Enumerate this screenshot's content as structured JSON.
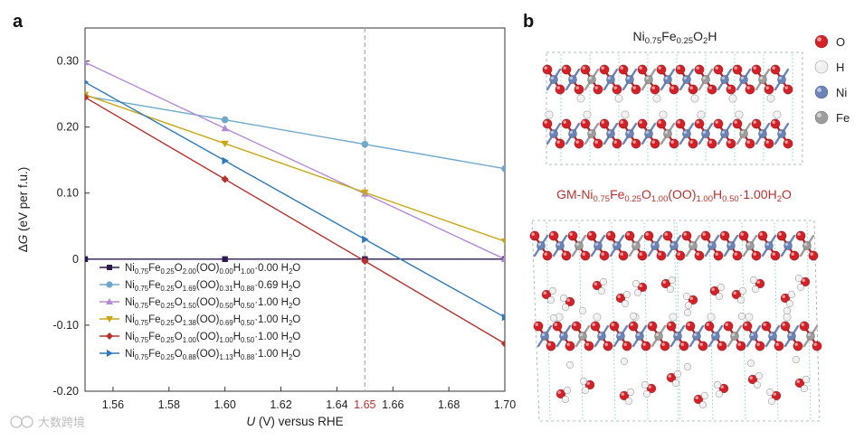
{
  "panel_a_label": "a",
  "panel_b_label": "b",
  "watermark": "大数跨境",
  "chart_data": {
    "type": "line",
    "title": "",
    "xlabel_prefix": "U",
    "xlabel_rest": " (V) versus RHE",
    "ylabel_prefix": "Δ",
    "ylabel_G": "G",
    "ylabel_rest": " (eV per f.u.)",
    "xlim": [
      1.55,
      1.7
    ],
    "ylim": [
      -0.2,
      0.35
    ],
    "xticks": [
      1.56,
      1.58,
      1.6,
      1.62,
      1.64,
      1.66,
      1.68,
      1.7
    ],
    "xtick_labels": [
      "1.56",
      "1.58",
      "1.60",
      "1.62",
      "1.64",
      "1.66",
      "1.68",
      "1.70"
    ],
    "yticks": [
      0.3,
      0.2,
      0.1,
      0,
      -0.1,
      -0.2
    ],
    "ytick_labels": [
      "0.30",
      "0.20",
      "0.10",
      "0",
      "-0.10",
      "-0.20"
    ],
    "vline": {
      "x": 1.65,
      "label": "1.65",
      "color": "#aaaaaa",
      "label_color": "#b5332e"
    },
    "grid": false,
    "legend_position": "bottom-left",
    "series": [
      {
        "color": "#2a1a4e",
        "marker": "square",
        "x": [
          1.55,
          1.6,
          1.65,
          1.7
        ],
        "y": [
          0.0,
          0.0,
          0.0,
          0.0
        ],
        "name_parts": [
          [
            "Ni",
            ""
          ],
          [
            "0.75",
            "sub"
          ],
          [
            "Fe",
            ""
          ],
          [
            "0.25",
            "sub"
          ],
          [
            "O",
            ""
          ],
          [
            "2.00",
            "sub"
          ],
          [
            "(OO)",
            ""
          ],
          [
            "0.00",
            "sub"
          ],
          [
            "H",
            ""
          ],
          [
            "1.00",
            "sub"
          ],
          [
            "·0.00 H",
            ""
          ],
          [
            "2",
            "sub"
          ],
          [
            "O",
            ""
          ]
        ]
      },
      {
        "color": "#6fa8c8",
        "marker": "circle",
        "x": [
          1.55,
          1.6,
          1.65,
          1.7
        ],
        "y": [
          0.247,
          0.211,
          0.174,
          0.137
        ],
        "name_parts": [
          [
            "Ni",
            ""
          ],
          [
            "0.75",
            "sub"
          ],
          [
            "Fe",
            ""
          ],
          [
            "0.25",
            "sub"
          ],
          [
            "O",
            ""
          ],
          [
            "1.69",
            "sub"
          ],
          [
            "(OO)",
            ""
          ],
          [
            "0.31",
            "sub"
          ],
          [
            "H",
            ""
          ],
          [
            "0.88",
            "sub"
          ],
          [
            "·0.69 H",
            ""
          ],
          [
            "2",
            "sub"
          ],
          [
            "O",
            ""
          ]
        ]
      },
      {
        "color": "#b48ad6",
        "marker": "triangle",
        "x": [
          1.55,
          1.6,
          1.65,
          1.7
        ],
        "y": [
          0.298,
          0.198,
          0.099,
          0.0
        ],
        "name_parts": [
          [
            "Ni",
            ""
          ],
          [
            "0.75",
            "sub"
          ],
          [
            "Fe",
            ""
          ],
          [
            "0.25",
            "sub"
          ],
          [
            "O",
            ""
          ],
          [
            "1.50",
            "sub"
          ],
          [
            "(OO)",
            ""
          ],
          [
            "0.50",
            "sub"
          ],
          [
            "H",
            ""
          ],
          [
            "0.50",
            "sub"
          ],
          [
            "·1.00 H",
            ""
          ],
          [
            "2",
            "sub"
          ],
          [
            "O",
            ""
          ]
        ]
      },
      {
        "color": "#c9a616",
        "marker": "triangle-down",
        "x": [
          1.55,
          1.6,
          1.65,
          1.7
        ],
        "y": [
          0.249,
          0.175,
          0.101,
          0.027
        ],
        "name_parts": [
          [
            "Ni",
            ""
          ],
          [
            "0.75",
            "sub"
          ],
          [
            "Fe",
            ""
          ],
          [
            "0.25",
            "sub"
          ],
          [
            "O",
            ""
          ],
          [
            "1.38",
            "sub"
          ],
          [
            "(OO)",
            ""
          ],
          [
            "0.69",
            "sub"
          ],
          [
            "H",
            ""
          ],
          [
            "0.50",
            "sub"
          ],
          [
            "·1.00 H",
            ""
          ],
          [
            "2",
            "sub"
          ],
          [
            "O",
            ""
          ]
        ]
      },
      {
        "color": "#b5332e",
        "marker": "diamond",
        "x": [
          1.55,
          1.6,
          1.65,
          1.7
        ],
        "y": [
          0.245,
          0.121,
          -0.003,
          -0.128
        ],
        "name_parts": [
          [
            "Ni",
            ""
          ],
          [
            "0.75",
            "sub"
          ],
          [
            "Fe",
            ""
          ],
          [
            "0.25",
            "sub"
          ],
          [
            "O",
            ""
          ],
          [
            "1.00",
            "sub"
          ],
          [
            "(OO)",
            ""
          ],
          [
            "1.00",
            "sub"
          ],
          [
            "H",
            ""
          ],
          [
            "0.50",
            "sub"
          ],
          [
            "·1.00 H",
            ""
          ],
          [
            "2",
            "sub"
          ],
          [
            "O",
            ""
          ]
        ]
      },
      {
        "color": "#2f79b8",
        "marker": "triangle-right",
        "x": [
          1.55,
          1.6,
          1.65,
          1.7
        ],
        "y": [
          0.268,
          0.149,
          0.03,
          -0.088
        ],
        "name_parts": [
          [
            "Ni",
            ""
          ],
          [
            "0.75",
            "sub"
          ],
          [
            "Fe",
            ""
          ],
          [
            "0.25",
            "sub"
          ],
          [
            "O",
            ""
          ],
          [
            "0.88",
            "sub"
          ],
          [
            "(OO)",
            ""
          ],
          [
            "1.13",
            "sub"
          ],
          [
            "H",
            ""
          ],
          [
            "0.88",
            "sub"
          ],
          [
            "·1.00 H",
            ""
          ],
          [
            "2",
            "sub"
          ],
          [
            "O",
            ""
          ]
        ]
      }
    ]
  },
  "structures": {
    "top_title_parts": [
      [
        "Ni",
        ""
      ],
      [
        "0.75",
        "sub"
      ],
      [
        "Fe",
        ""
      ],
      [
        "0.25",
        "sub"
      ],
      [
        "O",
        ""
      ],
      [
        "2",
        "sub"
      ],
      [
        "H",
        ""
      ]
    ],
    "bottom_title_parts": [
      [
        "GM-Ni",
        ""
      ],
      [
        "0.75",
        "sub"
      ],
      [
        "Fe",
        ""
      ],
      [
        "0.25",
        "sub"
      ],
      [
        "O",
        ""
      ],
      [
        "1.00",
        "sub"
      ],
      [
        "(OO)",
        ""
      ],
      [
        "1.00",
        "sub"
      ],
      [
        "H",
        ""
      ],
      [
        "0.50",
        "sub"
      ],
      [
        "·1.00H",
        ""
      ],
      [
        "2",
        "sub"
      ],
      [
        "O",
        ""
      ]
    ],
    "atom_legend": [
      {
        "label": "O",
        "color": "#d42026"
      },
      {
        "label": "H",
        "color": "#f0f0f0"
      },
      {
        "label": "Ni",
        "color": "#6a84b8"
      },
      {
        "label": "Fe",
        "color": "#9d9d9d"
      }
    ]
  }
}
